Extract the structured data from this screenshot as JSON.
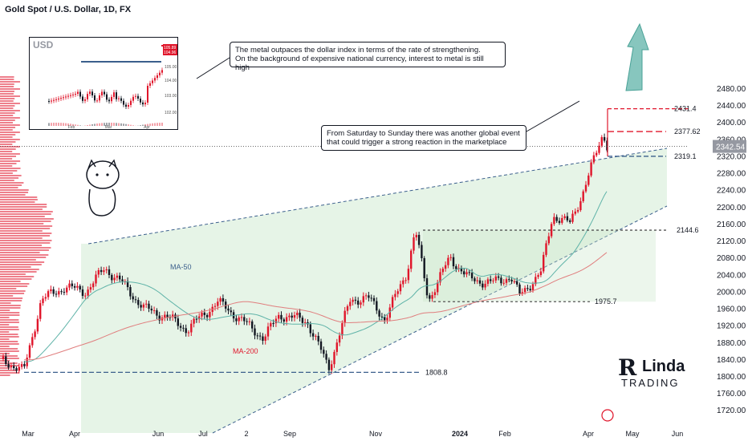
{
  "header": {
    "title": "Gold Spot / U.S. Dollar, 1D, FX"
  },
  "callouts": {
    "top_line1": "The metal outpaces the dollar index in terms of the rate of strengthening.",
    "top_line2": "On the background of expensive national currency, interest to metal is still high",
    "mid_line1": "From Saturday to Sunday there was another global event",
    "mid_line2": "that could trigger a strong reaction in the marketplace"
  },
  "branding": {
    "logo_mark": "R",
    "logo_word": "Linda",
    "logo_sub": "TRADING"
  },
  "colors": {
    "up": "#e0162b",
    "down": "#131722",
    "ma50": "#5fb3a8",
    "ma200": "#e07e7e",
    "accent": "#2962ff",
    "zone": "#c8e6c9",
    "target": "#e0162b",
    "level": "#3b5f8c",
    "arrow": "#5fb3a8"
  },
  "chart_data": {
    "type": "candlestick",
    "symbol": "Gold Spot / U.S. Dollar",
    "timeframe": "1D",
    "y_ticks": [
      2480,
      2440,
      2400,
      2360,
      2320,
      2280,
      2240,
      2200,
      2160,
      2120,
      2080,
      2040,
      2000,
      1960,
      1920,
      1880,
      1840,
      1800,
      1760,
      1720
    ],
    "x_ticks": [
      "Mar",
      "Apr",
      "Jun",
      "Jul",
      "2",
      "Sep",
      "Nov",
      "2024",
      "Feb",
      "Apr",
      "May",
      "Jun"
    ],
    "ylim": [
      1712,
      2500
    ],
    "current_price": "2342.54",
    "levels": [
      {
        "price": 2431.4,
        "label": "2431.4"
      },
      {
        "price": 2377.62,
        "label": "2377.62"
      },
      {
        "price": 2319.1,
        "label": "2319.1"
      },
      {
        "price": 2144.6,
        "label": "2144.6"
      },
      {
        "price": 1975.7,
        "label": "1975.7"
      },
      {
        "price": 1808.8,
        "label": "1808.8"
      }
    ],
    "moving_averages": [
      {
        "name": "MA-50"
      },
      {
        "name": "MA-200"
      }
    ],
    "price_path": [
      [
        "2023-02-20",
        1840
      ],
      [
        "2023-03-08",
        1812
      ],
      [
        "2023-03-20",
        1980
      ],
      [
        "2023-04-05",
        2010
      ],
      [
        "2023-04-20",
        2000
      ],
      [
        "2023-05-03",
        2055
      ],
      [
        "2023-05-15",
        2020
      ],
      [
        "2023-05-30",
        1960
      ],
      [
        "2023-06-15",
        1940
      ],
      [
        "2023-06-29",
        1910
      ],
      [
        "2023-07-20",
        1975
      ],
      [
        "2023-08-01",
        1945
      ],
      [
        "2023-08-21",
        1890
      ],
      [
        "2023-09-01",
        1945
      ],
      [
        "2023-09-20",
        1930
      ],
      [
        "2023-10-05",
        1820
      ],
      [
        "2023-10-20",
        1980
      ],
      [
        "2023-11-01",
        1985
      ],
      [
        "2023-11-13",
        1935
      ],
      [
        "2023-11-28",
        2045
      ],
      [
        "2023-12-04",
        2145
      ],
      [
        "2023-12-13",
        1980
      ],
      [
        "2023-12-28",
        2080
      ],
      [
        "2024-01-10",
        2030
      ],
      [
        "2024-01-25",
        2020
      ],
      [
        "2024-02-08",
        2035
      ],
      [
        "2024-02-14",
        1990
      ],
      [
        "2024-02-29",
        2045
      ],
      [
        "2024-03-08",
        2180
      ],
      [
        "2024-03-20",
        2160
      ],
      [
        "2024-03-29",
        2235
      ],
      [
        "2024-04-08",
        2335
      ],
      [
        "2024-04-12",
        2375
      ],
      [
        "2024-04-15",
        2342.54
      ]
    ],
    "inset": {
      "label": "USD",
      "x_ticks": [
        "Feb",
        "Mar",
        "Apr"
      ],
      "y_ticks": [
        "105.00",
        "104.00",
        "103.00",
        "102.00"
      ],
      "price_tags": [
        "105.89",
        "104.96"
      ]
    }
  }
}
